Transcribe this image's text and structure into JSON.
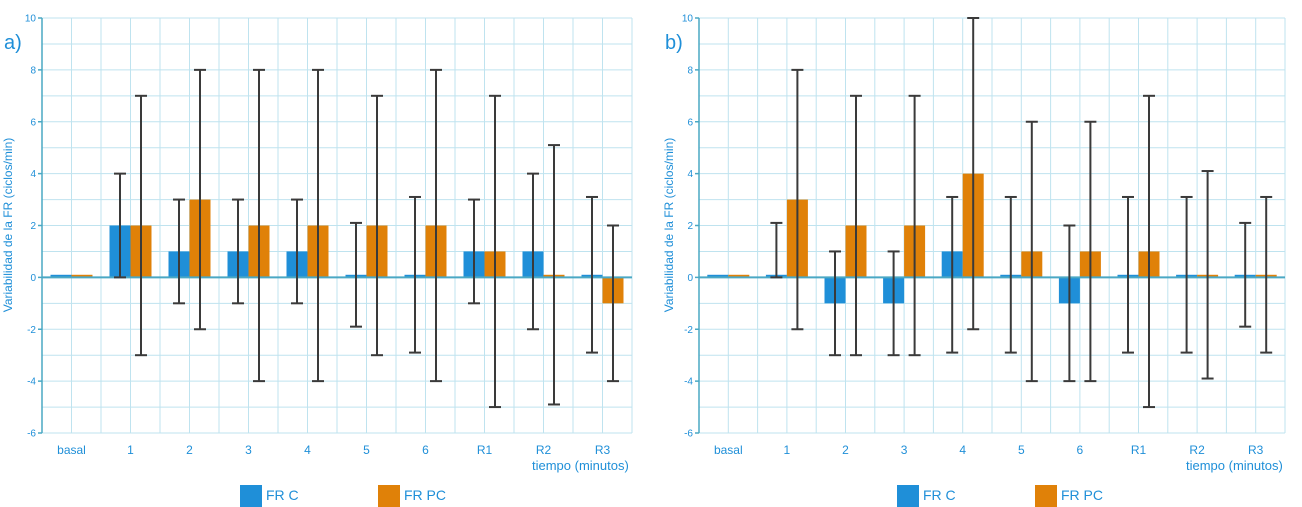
{
  "colors": {
    "fr_c": "#1f8fd8",
    "fr_pc": "#e08108",
    "grid": "#bfe3ef",
    "axis": "#4aa8c4",
    "label": "#1f8fd8",
    "error": "#3a3a3a"
  },
  "chart_data": [
    {
      "type": "bar",
      "panel": "a)",
      "ylabel": "Variabilidad de la FR (ciclos/min)",
      "xlabel": "tiempo (minutos)",
      "ylim": [
        -6,
        10
      ],
      "yticks": [
        -6,
        -4,
        -2,
        0,
        2,
        4,
        6,
        8,
        10
      ],
      "grid": true,
      "legend_position": "bottom",
      "categories": [
        "basal",
        "1",
        "2",
        "3",
        "4",
        "5",
        "6",
        "R1",
        "R2",
        "R3"
      ],
      "series": [
        {
          "name": "FR C",
          "values": [
            0.1,
            2,
            1,
            1,
            1,
            0.1,
            0.1,
            1,
            1,
            0.1
          ],
          "err_low": [
            0.1,
            0,
            -1,
            -1,
            -1,
            -1.9,
            -2.9,
            -1,
            -2,
            -2.9
          ],
          "err_high": [
            0.1,
            4,
            3,
            3,
            3,
            2.1,
            3.1,
            3,
            4,
            3.1
          ]
        },
        {
          "name": "FR PC",
          "values": [
            0.1,
            2,
            3,
            2,
            2,
            2,
            2,
            1,
            0.1,
            -1
          ],
          "err_low": [
            0.1,
            -3,
            -2,
            -4,
            -4,
            -3,
            -4,
            -5,
            -4.9,
            -4
          ],
          "err_high": [
            0.1,
            7,
            8,
            8,
            8,
            7,
            8,
            7,
            5.1,
            2
          ]
        }
      ]
    },
    {
      "type": "bar",
      "panel": "b)",
      "ylabel": "Variabilidad de la FR (ciclos/min)",
      "xlabel": "tiempo (minutos)",
      "ylim": [
        -6,
        10
      ],
      "yticks": [
        -6,
        -4,
        -2,
        0,
        2,
        4,
        6,
        8,
        10
      ],
      "grid": true,
      "legend_position": "bottom",
      "categories": [
        "basal",
        "1",
        "2",
        "3",
        "4",
        "5",
        "6",
        "R1",
        "R2",
        "R3"
      ],
      "series": [
        {
          "name": "FR C",
          "values": [
            0.1,
            0.1,
            -1,
            -1,
            1,
            0.1,
            -1,
            0.1,
            0.1,
            0.1
          ],
          "err_low": [
            0.1,
            0,
            -3,
            -3,
            -2.9,
            -2.9,
            -4,
            -2.9,
            -2.9,
            -1.9
          ],
          "err_high": [
            0.1,
            2.1,
            1,
            1,
            3.1,
            3.1,
            2,
            3.1,
            3.1,
            2.1
          ]
        },
        {
          "name": "FR PC",
          "values": [
            0.1,
            3,
            2,
            2,
            4,
            1,
            1,
            1,
            0.1,
            0.1
          ],
          "err_low": [
            0.1,
            -2,
            -3,
            -3,
            -2,
            -4,
            -4,
            -5,
            -3.9,
            -2.9
          ],
          "err_high": [
            0.1,
            8,
            7,
            7,
            10,
            6,
            6,
            7,
            4.1,
            3.1
          ]
        }
      ]
    }
  ]
}
